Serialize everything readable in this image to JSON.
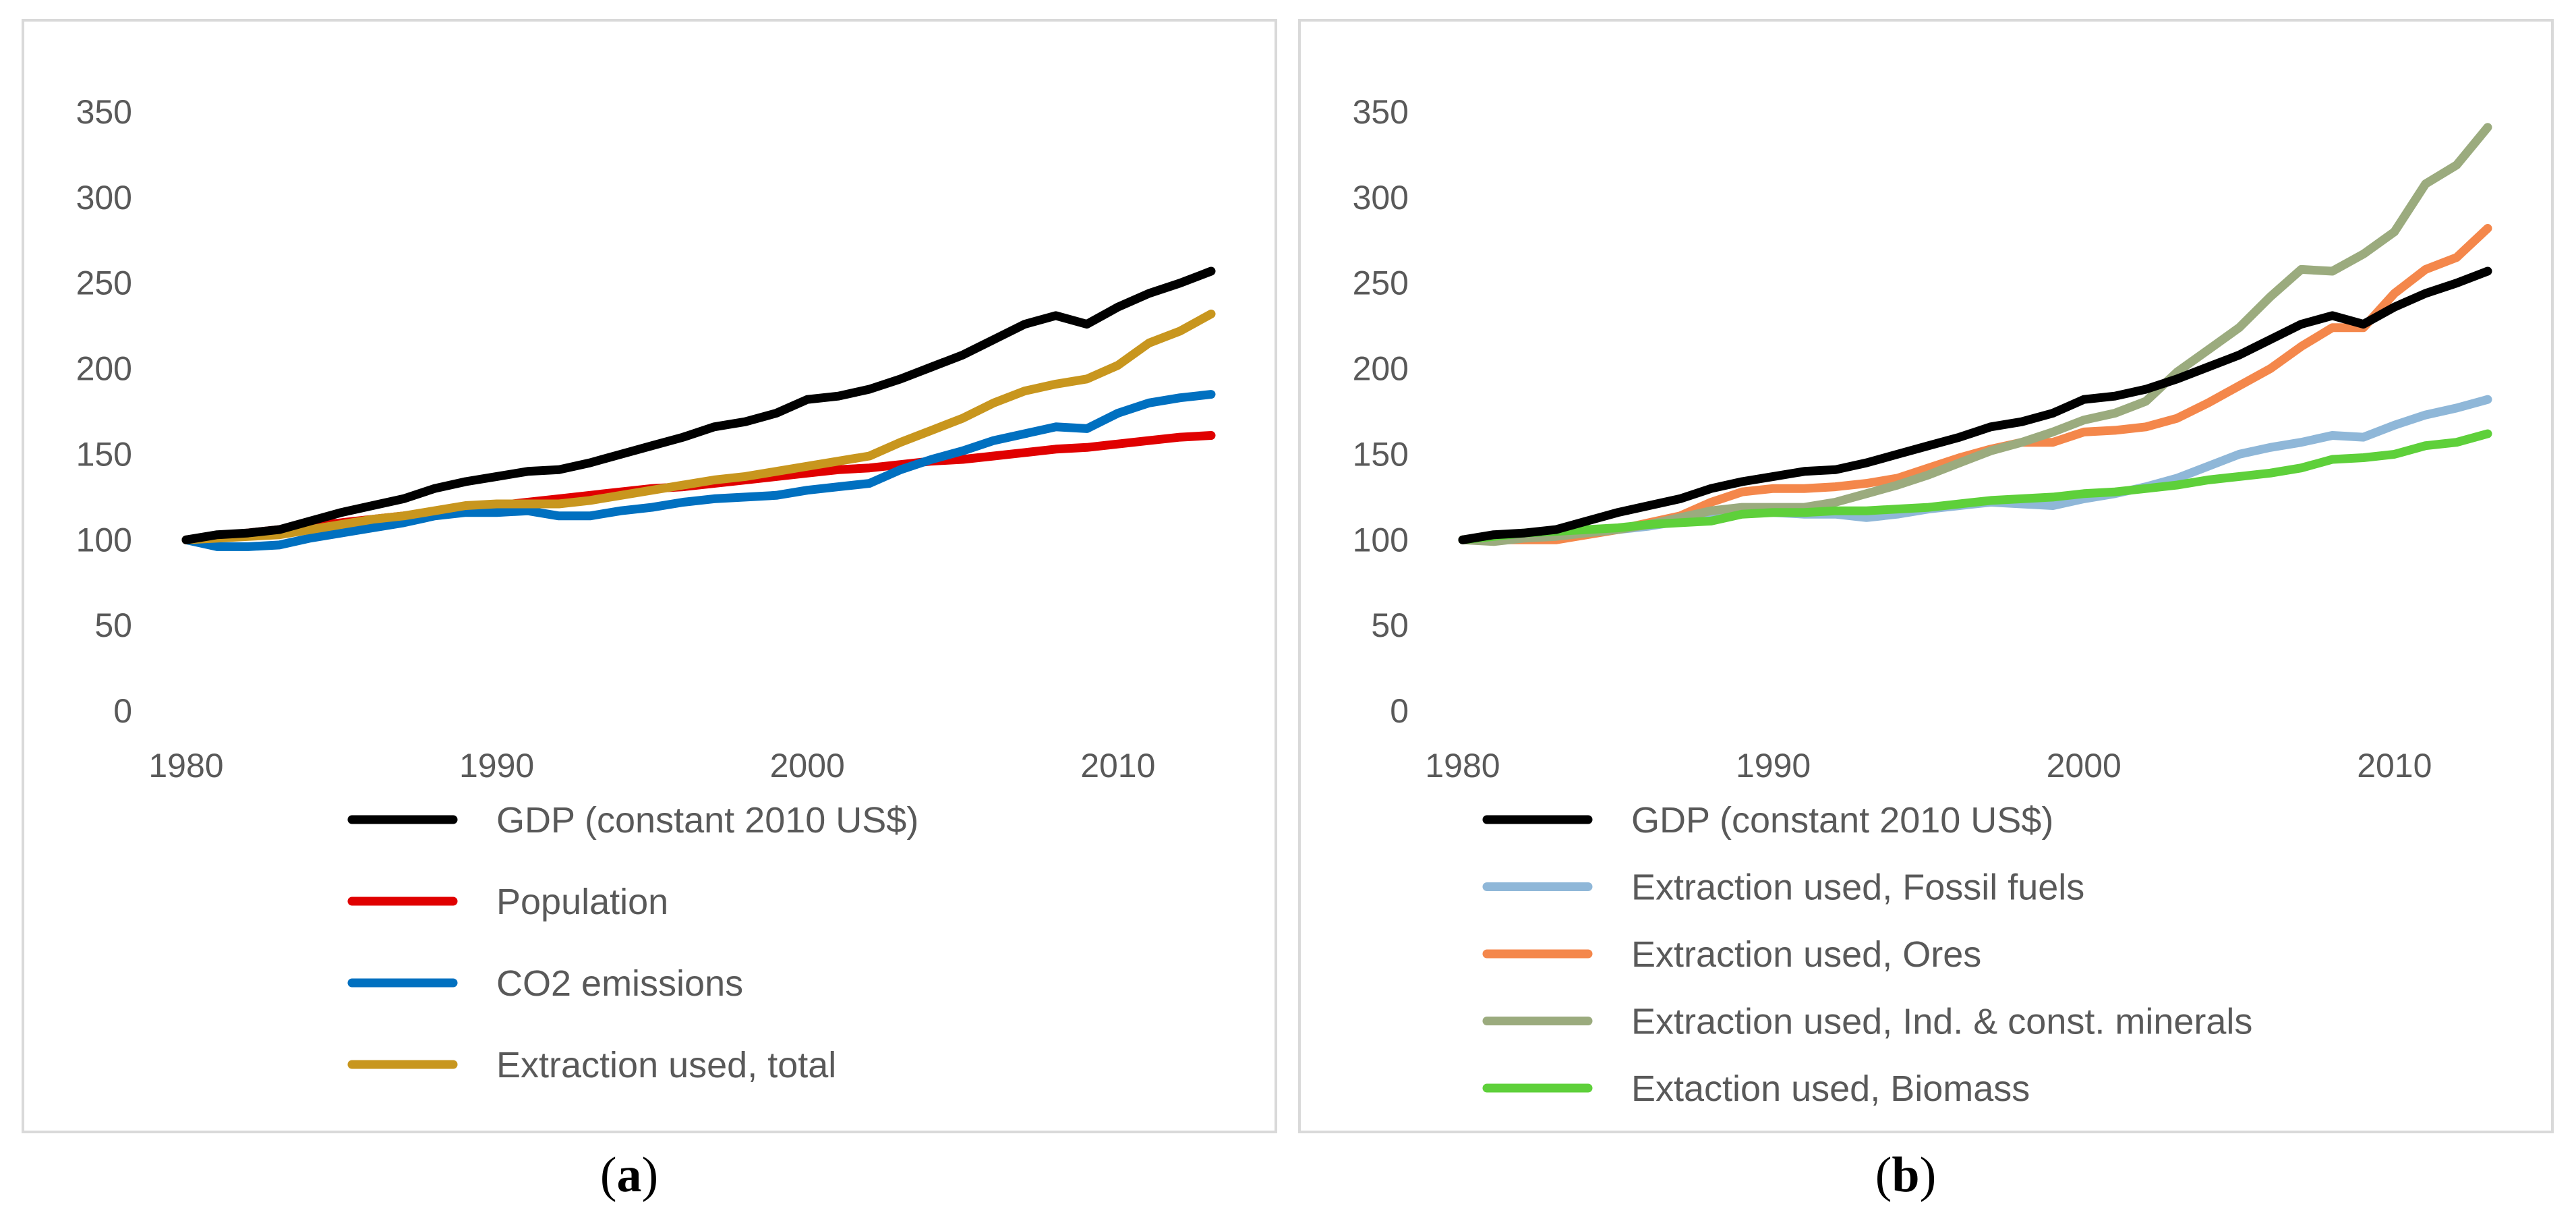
{
  "captions": {
    "a": {
      "open": "(",
      "letter": "a",
      "close": ")"
    },
    "b": {
      "open": "(",
      "letter": "b",
      "close": ")"
    }
  },
  "chart_data": [
    {
      "type": "line",
      "panel": "a",
      "title": "",
      "xlabel": "",
      "ylabel": "",
      "xlim": [
        1980,
        2013
      ],
      "ylim": [
        0,
        350
      ],
      "xticks": [
        1980,
        1990,
        2000,
        2010
      ],
      "yticks": [
        0,
        50,
        100,
        150,
        200,
        250,
        300,
        350
      ],
      "grid": "horizontal",
      "legend": "bottom",
      "x": [
        1980,
        1981,
        1982,
        1983,
        1984,
        1985,
        1986,
        1987,
        1988,
        1989,
        1990,
        1991,
        1992,
        1993,
        1994,
        1995,
        1996,
        1997,
        1998,
        1999,
        2000,
        2001,
        2002,
        2003,
        2004,
        2005,
        2006,
        2007,
        2008,
        2009,
        2010,
        2011,
        2012,
        2013
      ],
      "series": [
        {
          "name": "GDP (constant 2010 US$)",
          "color": "#000000",
          "values": [
            100,
            103,
            104,
            106,
            111,
            116,
            120,
            124,
            130,
            134,
            137,
            140,
            141,
            145,
            150,
            155,
            160,
            166,
            169,
            174,
            182,
            184,
            188,
            194,
            201,
            208,
            217,
            226,
            231,
            226,
            236,
            244,
            250,
            257
          ]
        },
        {
          "name": "Population",
          "color": "#e00000",
          "values": [
            100,
            102,
            104,
            106,
            108,
            110,
            112,
            114,
            116,
            118,
            120,
            122,
            124,
            126,
            128,
            130,
            131,
            133,
            135,
            137,
            139,
            141,
            142,
            144,
            146,
            147,
            149,
            151,
            153,
            154,
            156,
            158,
            160,
            161
          ]
        },
        {
          "name": "CO2 emissions",
          "color": "#0070c0",
          "values": [
            100,
            96,
            96,
            97,
            101,
            104,
            107,
            110,
            114,
            116,
            116,
            117,
            114,
            114,
            117,
            119,
            122,
            124,
            125,
            126,
            129,
            131,
            133,
            141,
            147,
            152,
            158,
            162,
            166,
            165,
            174,
            180,
            183,
            185
          ]
        },
        {
          "name": "Extraction used, total",
          "color": "#c8961e",
          "values": [
            100,
            101,
            102,
            103,
            106,
            109,
            112,
            114,
            117,
            120,
            121,
            121,
            121,
            123,
            126,
            129,
            132,
            135,
            137,
            140,
            143,
            146,
            149,
            157,
            164,
            171,
            180,
            187,
            191,
            194,
            202,
            215,
            222,
            232
          ]
        }
      ]
    },
    {
      "type": "line",
      "panel": "b",
      "title": "",
      "xlabel": "",
      "ylabel": "",
      "xlim": [
        1980,
        2013
      ],
      "ylim": [
        0,
        350
      ],
      "xticks": [
        1980,
        1990,
        2000,
        2010
      ],
      "yticks": [
        0,
        50,
        100,
        150,
        200,
        250,
        300,
        350
      ],
      "grid": "horizontal",
      "legend": "bottom",
      "x": [
        1980,
        1981,
        1982,
        1983,
        1984,
        1985,
        1986,
        1987,
        1988,
        1989,
        1990,
        1991,
        1992,
        1993,
        1994,
        1995,
        1996,
        1997,
        1998,
        1999,
        2000,
        2001,
        2002,
        2003,
        2004,
        2005,
        2006,
        2007,
        2008,
        2009,
        2010,
        2011,
        2012,
        2013
      ],
      "series": [
        {
          "name": "GDP (constant 2010 US$)",
          "color": "#000000",
          "values": [
            100,
            103,
            104,
            106,
            111,
            116,
            120,
            124,
            130,
            134,
            137,
            140,
            141,
            145,
            150,
            155,
            160,
            166,
            169,
            174,
            182,
            184,
            188,
            194,
            201,
            208,
            217,
            226,
            231,
            226,
            236,
            244,
            250,
            257
          ]
        },
        {
          "name": "Extraction used, Fossil fuels",
          "color": "#8fb7d8",
          "values": [
            100,
            101,
            102,
            103,
            104,
            106,
            108,
            111,
            115,
            116,
            116,
            115,
            115,
            113,
            115,
            118,
            120,
            122,
            121,
            120,
            124,
            127,
            131,
            136,
            143,
            150,
            154,
            157,
            161,
            160,
            167,
            173,
            177,
            182
          ]
        },
        {
          "name": "Extraction used, Ores",
          "color": "#f4874b",
          "values": [
            100,
            100,
            100,
            100,
            103,
            106,
            110,
            114,
            122,
            128,
            130,
            130,
            131,
            133,
            136,
            142,
            148,
            153,
            157,
            157,
            163,
            164,
            166,
            171,
            180,
            190,
            200,
            213,
            224,
            224,
            244,
            258,
            265,
            282
          ]
        },
        {
          "name": "Extraction used, Ind. & const. minerals",
          "color": "#9bab7e",
          "values": [
            100,
            99,
            101,
            102,
            104,
            106,
            109,
            113,
            117,
            119,
            119,
            119,
            122,
            127,
            132,
            138,
            145,
            152,
            157,
            163,
            170,
            174,
            181,
            198,
            211,
            224,
            242,
            258,
            257,
            267,
            280,
            308,
            319,
            341
          ]
        },
        {
          "name": "Extaction used, Biomass",
          "color": "#5ed03a",
          "values": [
            100,
            102,
            104,
            105,
            106,
            107,
            109,
            110,
            111,
            115,
            116,
            116,
            117,
            117,
            118,
            119,
            121,
            123,
            124,
            125,
            127,
            128,
            130,
            132,
            135,
            137,
            139,
            142,
            147,
            148,
            150,
            155,
            157,
            162
          ]
        }
      ]
    }
  ]
}
